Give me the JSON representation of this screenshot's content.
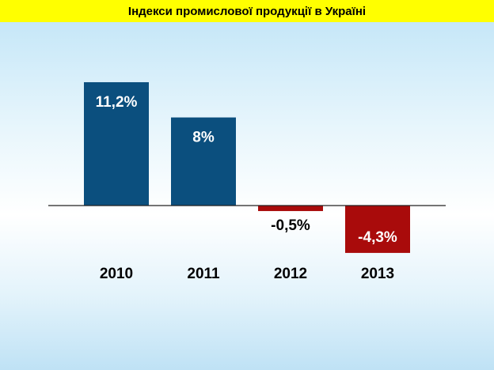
{
  "title": "Індекси промислової продукції в Україні",
  "colors": {
    "title_bg": "#ffff00",
    "positive": "#0b4f7e",
    "negative": "#a90b0b",
    "baseline": "#222222"
  },
  "chart_data": {
    "type": "bar",
    "categories": [
      "2010",
      "2011",
      "2012",
      "2013"
    ],
    "values": [
      11.2,
      8,
      -0.5,
      -4.3
    ],
    "value_labels": [
      "11,2%",
      "8%",
      "-0,5%",
      "-4,3%"
    ],
    "title": "Індекси промислової продукції в Україні",
    "xlabel": "",
    "ylabel": "",
    "grid": false
  }
}
